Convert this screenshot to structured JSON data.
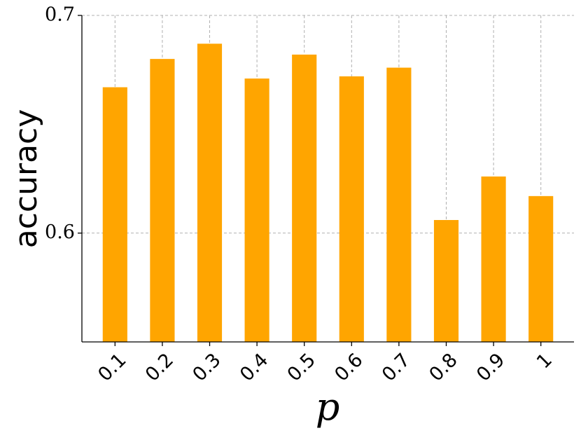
{
  "chart_data": {
    "type": "bar",
    "x_label": "p",
    "y_label": "accuracy",
    "categories": [
      "0.1",
      "0.2",
      "0.3",
      "0.4",
      "0.5",
      "0.6",
      "0.7",
      "0.8",
      "0.9",
      "1"
    ],
    "values": [
      0.667,
      0.68,
      0.687,
      0.671,
      0.682,
      0.672,
      0.676,
      0.606,
      0.626,
      0.617
    ],
    "color": "#ffa500",
    "ylim": [
      0.55,
      0.7
    ],
    "yticks": [
      0.6,
      0.7
    ],
    "grid": true
  }
}
